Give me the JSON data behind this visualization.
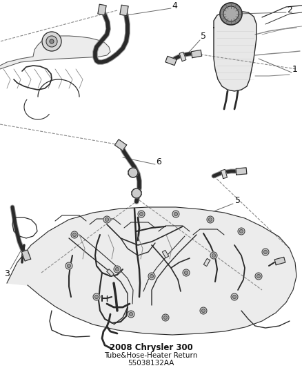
{
  "title": "2008 Chrysler 300",
  "subtitle": "Tube&Hose-Heater Return",
  "part_number": "55038132AA",
  "bg_color": "#ffffff",
  "line_color": "#2a2a2a",
  "gray_color": "#888888",
  "light_gray": "#bbbbbb",
  "label_color": "#111111",
  "figsize": [
    4.38,
    5.33
  ],
  "dpi": 100,
  "title_fontsize": 8,
  "label_fontsize": 9
}
